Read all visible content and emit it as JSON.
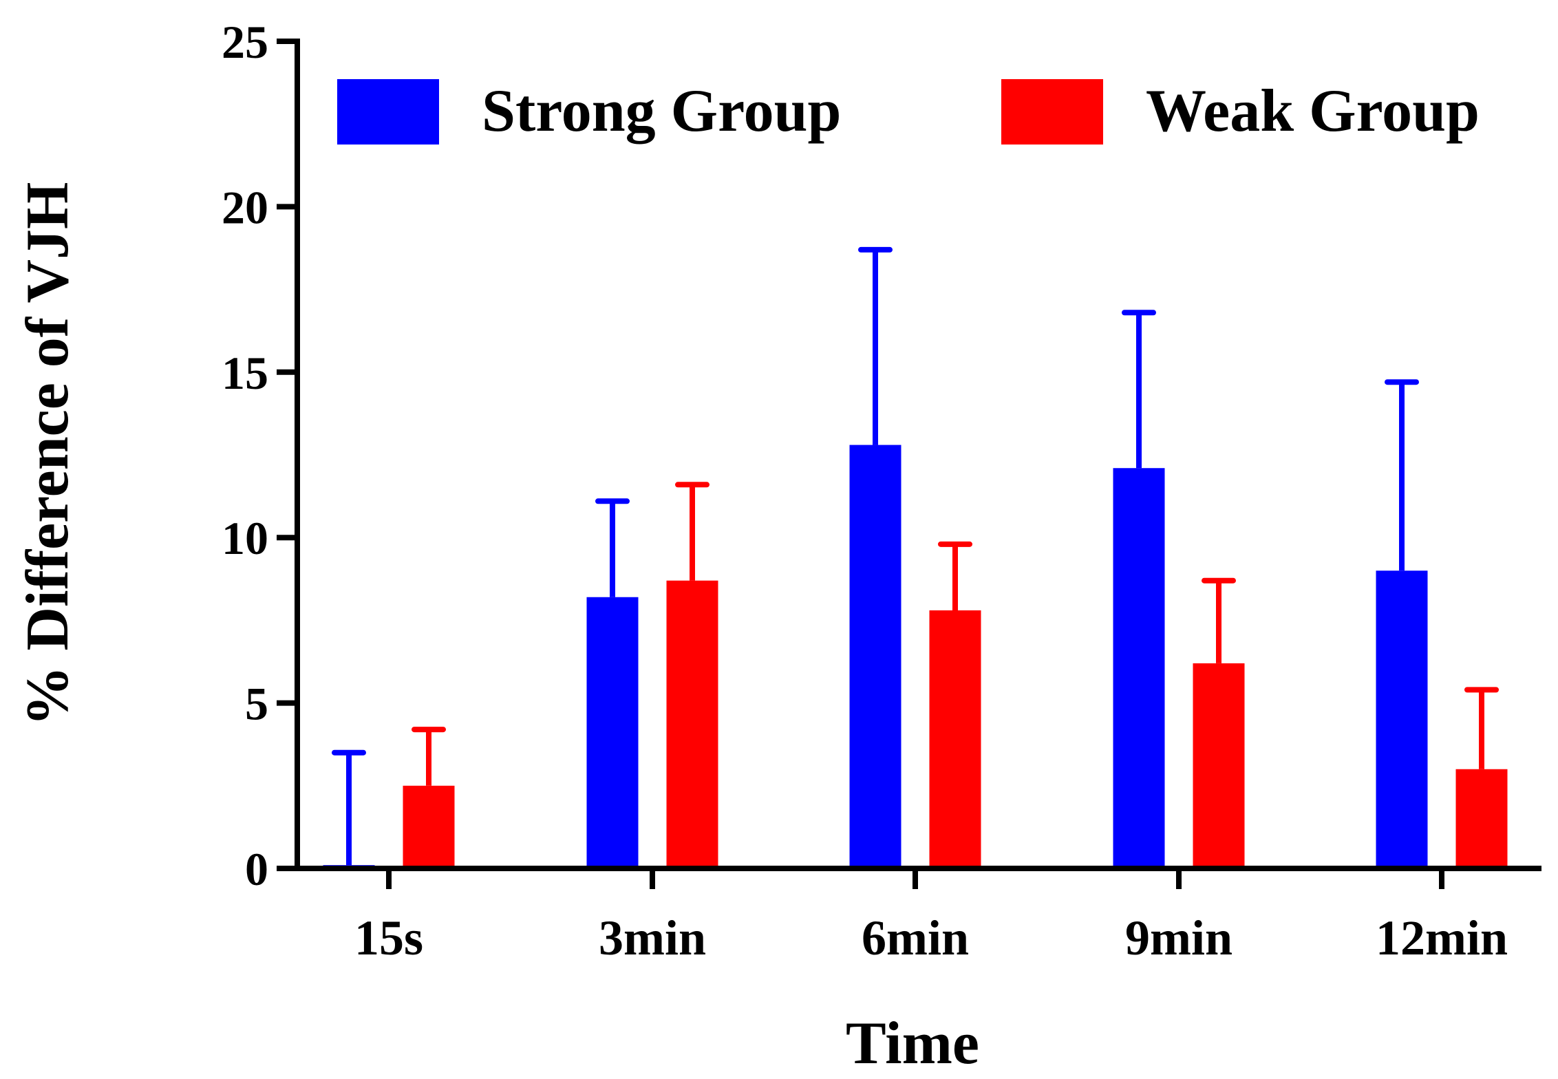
{
  "chart_data": {
    "type": "bar",
    "title": "",
    "xlabel": "Time",
    "ylabel": "% Difference of VJH",
    "categories": [
      "15s",
      "3min",
      "6min",
      "9min",
      "12min"
    ],
    "ylim": [
      0,
      25
    ],
    "yticks": [
      "0",
      "5",
      "10",
      "15",
      "20",
      "25"
    ],
    "grid": false,
    "legend_position": "top",
    "error_bars": "upper standard deviation",
    "series": [
      {
        "name": "Strong Group",
        "color": "#0000ff",
        "values": [
          0.1,
          8.2,
          12.8,
          12.1,
          9.0
        ],
        "error_upper": [
          3.5,
          11.1,
          18.7,
          16.8,
          14.7
        ]
      },
      {
        "name": "Weak Group",
        "color": "#ff0000",
        "values": [
          2.5,
          8.7,
          7.8,
          6.2,
          3.0
        ],
        "error_upper": [
          4.2,
          11.6,
          9.8,
          8.7,
          5.4
        ]
      }
    ]
  }
}
